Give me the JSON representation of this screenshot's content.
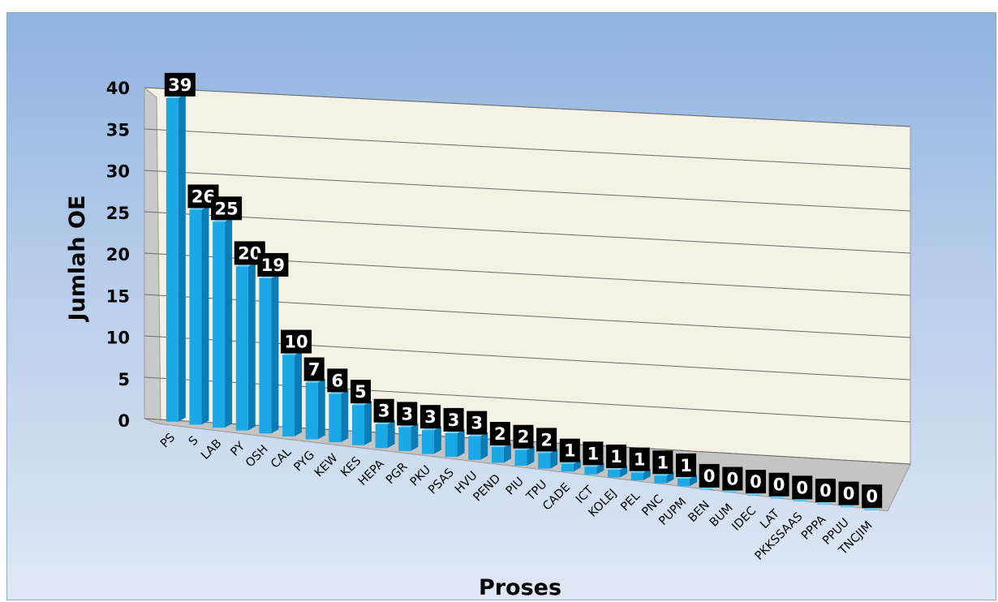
{
  "colors": {
    "bar_front": "#1aa8e6",
    "bar_side": "#0b7cb5",
    "bar_top": "#73d4fb",
    "plot_back_wall": "#f3f2e4",
    "gridline": "#6b6b6b",
    "label_box": "#000000",
    "label_text": "#ffffff"
  },
  "chart_data": {
    "type": "bar",
    "style": "3d-clustered-column",
    "xlabel": "Proses",
    "ylabel": "Jumlah OE",
    "ylim": [
      0,
      40
    ],
    "yticks": [
      0,
      5,
      10,
      15,
      20,
      25,
      30,
      35,
      40
    ],
    "grid": true,
    "legend": "none",
    "categories": [
      "PS",
      "S",
      "LAB",
      "PY",
      "OSH",
      "CAL",
      "PYG",
      "KEW",
      "KES",
      "HEPA",
      "PGR",
      "PKU",
      "PSAS",
      "HVU",
      "PEND",
      "PIU",
      "TPU",
      "CADE",
      "ICT",
      "KOLEJ",
      "PEL",
      "PNC",
      "PUPM",
      "BEN",
      "BUM",
      "IDEC",
      "LAT",
      "PKKSSAAS",
      "PPPA",
      "PPUU",
      "TNCJIM"
    ],
    "values": [
      39,
      26,
      25,
      20,
      19,
      10,
      7,
      6,
      5,
      3,
      3,
      3,
      3,
      3,
      2,
      2,
      2,
      1,
      1,
      1,
      1,
      1,
      1,
      0,
      0,
      0,
      0,
      0,
      0,
      0,
      0
    ],
    "data_labels": [
      "39",
      "26",
      "25",
      "20",
      "19",
      "10",
      "7",
      "6",
      "5",
      "3",
      "3",
      "3",
      "3",
      "3",
      "2",
      "2",
      "2",
      "1",
      "1",
      "1",
      "1",
      "1",
      "1",
      "0",
      "0",
      "0",
      "0",
      "0",
      "0",
      "0",
      "0"
    ]
  }
}
